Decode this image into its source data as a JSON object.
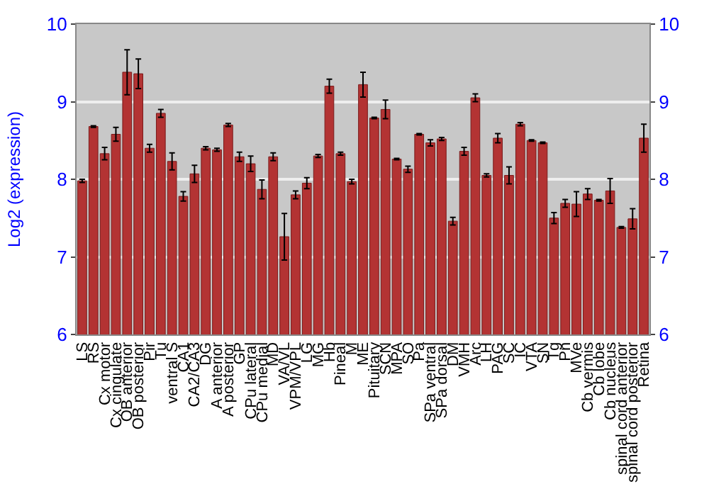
{
  "chart_data": {
    "type": "bar",
    "ylabel": "Log2 (expression)",
    "categories": [
      "LS",
      "RS",
      "Cx motor",
      "Cx cingulate",
      "OB anterior",
      "OB posterior",
      "Pir",
      "Tu",
      "ventral S",
      "CA1",
      "CA2/CA3",
      "DG",
      "A anterior",
      "A posterior",
      "GP",
      "CPu lateral",
      "CPu medial",
      "MD",
      "VA/VL",
      "VPM/VPL",
      "LG",
      "MG",
      "Hb",
      "Pineal",
      "M",
      "ME",
      "Pituitary",
      "SCN",
      "MPA",
      "SO",
      "Pa",
      "SPa ventral",
      "SPa dorsal",
      "DM",
      "VMH",
      "Arc",
      "LH",
      "PAG",
      "SC",
      "IC",
      "VTA",
      "SN",
      "Tg",
      "Pn",
      "MVe",
      "Cb vermis",
      "Cb lobe",
      "Cb nucleus",
      "spinal cord anterior",
      "spinal cord posterior",
      "Retina"
    ],
    "values": [
      7.98,
      8.68,
      8.33,
      8.58,
      9.38,
      9.36,
      8.4,
      8.85,
      8.23,
      7.78,
      8.07,
      8.4,
      8.38,
      8.7,
      8.29,
      8.2,
      7.87,
      8.29,
      7.26,
      7.8,
      7.95,
      8.3,
      9.2,
      8.33,
      7.97,
      9.22,
      8.79,
      8.9,
      8.26,
      8.13,
      8.58,
      8.47,
      8.52,
      7.46,
      8.36,
      9.05,
      8.05,
      8.53,
      8.05,
      8.71,
      8.5,
      8.47,
      7.5,
      7.69,
      7.68,
      7.81,
      7.73,
      7.85,
      7.38,
      7.49,
      8.53
    ],
    "errors": [
      0.02,
      0.01,
      0.08,
      0.09,
      0.29,
      0.19,
      0.05,
      0.05,
      0.11,
      0.06,
      0.11,
      0.02,
      0.02,
      0.02,
      0.06,
      0.1,
      0.12,
      0.05,
      0.3,
      0.05,
      0.07,
      0.02,
      0.09,
      0.02,
      0.03,
      0.16,
      0.01,
      0.12,
      0.01,
      0.04,
      0.01,
      0.04,
      0.02,
      0.05,
      0.05,
      0.05,
      0.02,
      0.06,
      0.11,
      0.02,
      0.01,
      0.01,
      0.07,
      0.05,
      0.16,
      0.07,
      0.01,
      0.16,
      0.01,
      0.13,
      0.18
    ],
    "color": "#b33333",
    "ylim": [
      6,
      10
    ],
    "yticks": [
      6,
      7,
      8,
      9,
      10
    ],
    "y2lim": [
      6,
      10
    ],
    "y2ticks": [
      6,
      7,
      8,
      9,
      10
    ],
    "grid": "y"
  }
}
